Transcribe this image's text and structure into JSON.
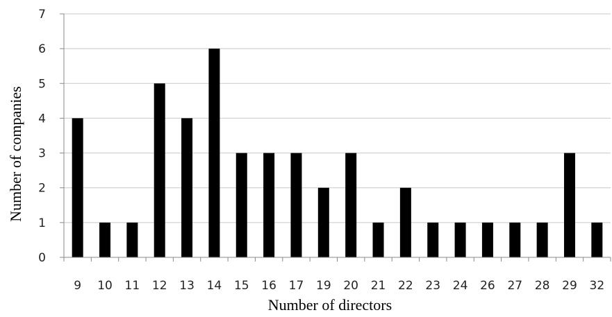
{
  "chart_data": {
    "type": "bar",
    "title": "",
    "xlabel": "Number of directors",
    "ylabel": "Number of companies",
    "categories": [
      "9",
      "10",
      "11",
      "12",
      "13",
      "14",
      "15",
      "16",
      "17",
      "19",
      "20",
      "21",
      "22",
      "23",
      "24",
      "26",
      "27",
      "28",
      "29",
      "32"
    ],
    "values": [
      4,
      1,
      1,
      5,
      4,
      6,
      3,
      3,
      3,
      2,
      3,
      1,
      2,
      1,
      1,
      1,
      1,
      1,
      3,
      1
    ],
    "ylim": [
      0,
      7
    ],
    "yticks": [
      0,
      1,
      2,
      3,
      4,
      5,
      6,
      7
    ],
    "grid": true,
    "legend": "none",
    "colors": {
      "bar": "#000000",
      "grid": "#c8c8c8",
      "axis": "#888888"
    }
  }
}
